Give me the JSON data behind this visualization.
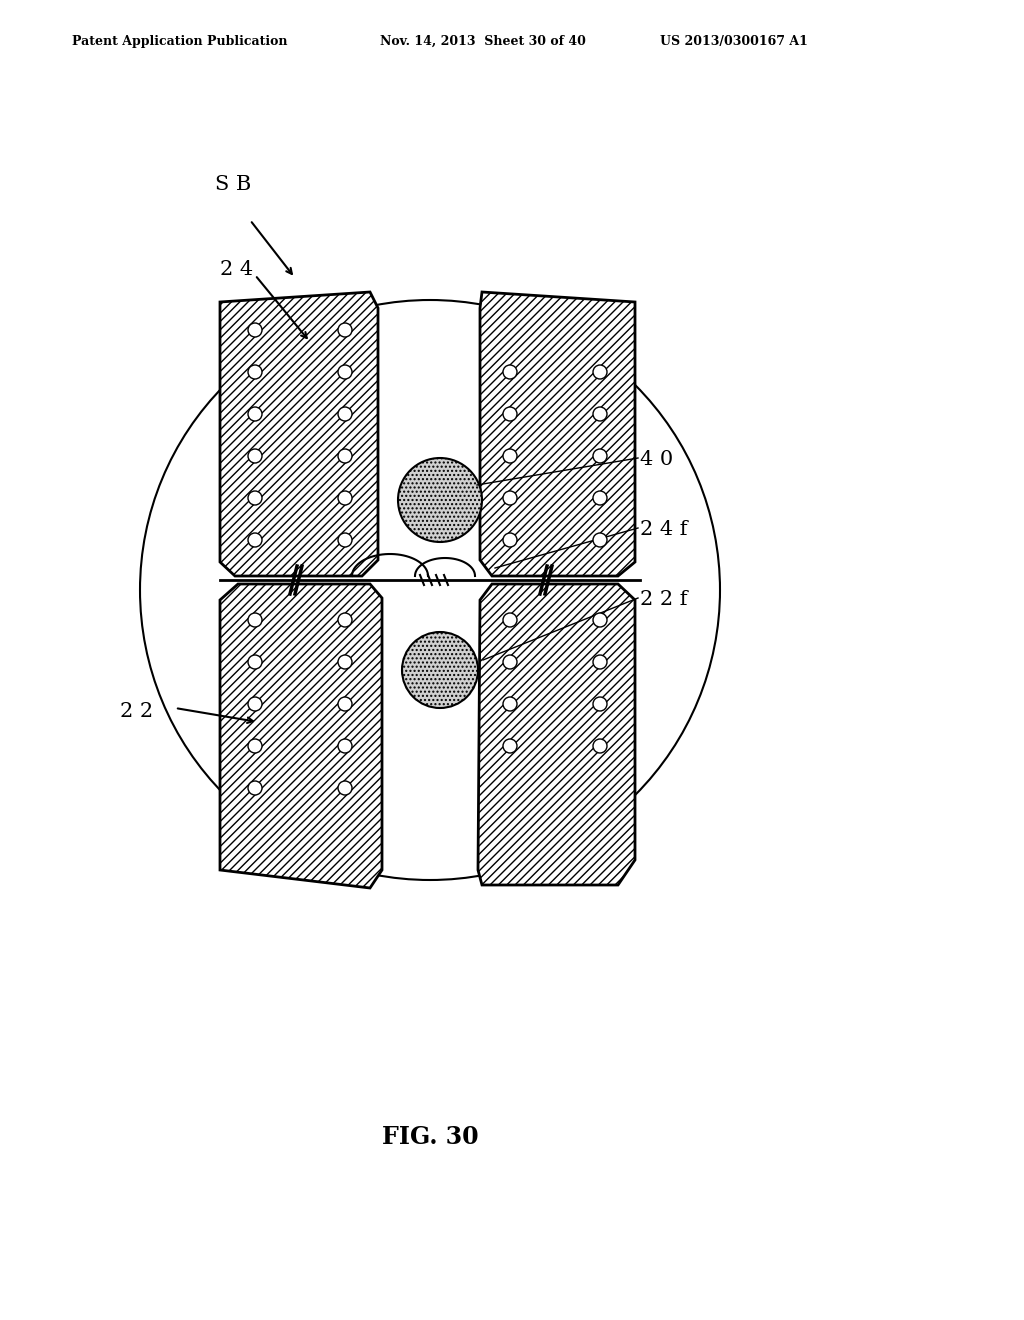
{
  "title": "FIG. 30",
  "header_left": "Patent Application Publication",
  "header_mid": "Nov. 14, 2013  Sheet 30 of 40",
  "header_right": "US 2013/0300167 A1",
  "label_SB": "S B",
  "label_24": "2 4",
  "label_22": "2 2",
  "label_40": "4 0",
  "label_24f": "2 4 f",
  "label_22f": "2 2 f",
  "bg_color": "#ffffff",
  "line_color": "#000000"
}
